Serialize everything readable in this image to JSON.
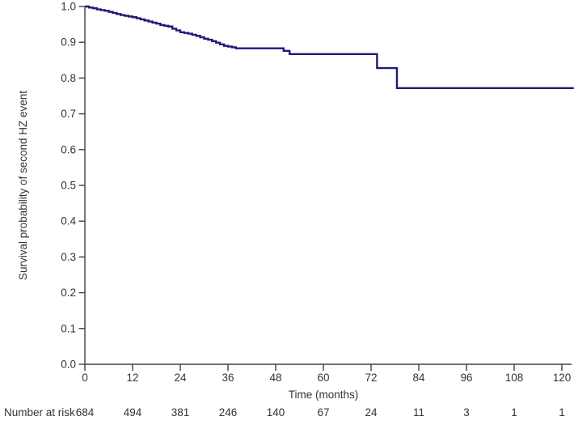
{
  "figure": {
    "background": "#ffffff",
    "text_color": "#333333",
    "axis_color": "#404040"
  },
  "chart_data": {
    "type": "line",
    "subtype": "kaplan_meier_step",
    "title": "",
    "xlabel": "Time (months)",
    "ylabel": "Survival probability of second HZ event",
    "xlim": [
      0,
      120
    ],
    "ylim": [
      0.0,
      1.0
    ],
    "grid": false,
    "legend": "none",
    "line_color": "#1e1b78",
    "x_ticks": [
      0,
      12,
      24,
      36,
      48,
      60,
      72,
      84,
      96,
      108,
      120
    ],
    "y_ticks": [
      "1.0",
      "0.9",
      "0.8",
      "0.7",
      "0.6",
      "0.5",
      "0.4",
      "0.3",
      "0.2",
      "0.1",
      "0.0"
    ],
    "curve_end_month": 123,
    "steps": [
      [
        0,
        1.0
      ],
      [
        1,
        0.997
      ],
      [
        2,
        0.995
      ],
      [
        3,
        0.992
      ],
      [
        4,
        0.99
      ],
      [
        5,
        0.988
      ],
      [
        6,
        0.985
      ],
      [
        7,
        0.982
      ],
      [
        8,
        0.979
      ],
      [
        9,
        0.976
      ],
      [
        10,
        0.974
      ],
      [
        11,
        0.972
      ],
      [
        12,
        0.97
      ],
      [
        13,
        0.967
      ],
      [
        14,
        0.964
      ],
      [
        15,
        0.961
      ],
      [
        16,
        0.958
      ],
      [
        17,
        0.955
      ],
      [
        18,
        0.952
      ],
      [
        19,
        0.948
      ],
      [
        20,
        0.946
      ],
      [
        21,
        0.944
      ],
      [
        22,
        0.938
      ],
      [
        23,
        0.933
      ],
      [
        24,
        0.928
      ],
      [
        25,
        0.926
      ],
      [
        26,
        0.924
      ],
      [
        27,
        0.921
      ],
      [
        28,
        0.918
      ],
      [
        29,
        0.914
      ],
      [
        30,
        0.91
      ],
      [
        31,
        0.907
      ],
      [
        32,
        0.903
      ],
      [
        33,
        0.899
      ],
      [
        34,
        0.894
      ],
      [
        35,
        0.89
      ],
      [
        36,
        0.888
      ],
      [
        37,
        0.886
      ],
      [
        38,
        0.883
      ],
      [
        50,
        0.876
      ],
      [
        51.5,
        0.867
      ],
      [
        73.5,
        0.828
      ],
      [
        78.5,
        0.772
      ],
      [
        123,
        0.772
      ]
    ]
  },
  "number_at_risk": {
    "label": "Number at risk",
    "time_points": [
      0,
      12,
      24,
      36,
      48,
      60,
      72,
      84,
      96,
      108,
      120
    ],
    "values": [
      684,
      494,
      381,
      246,
      140,
      67,
      24,
      11,
      3,
      1,
      1
    ]
  }
}
